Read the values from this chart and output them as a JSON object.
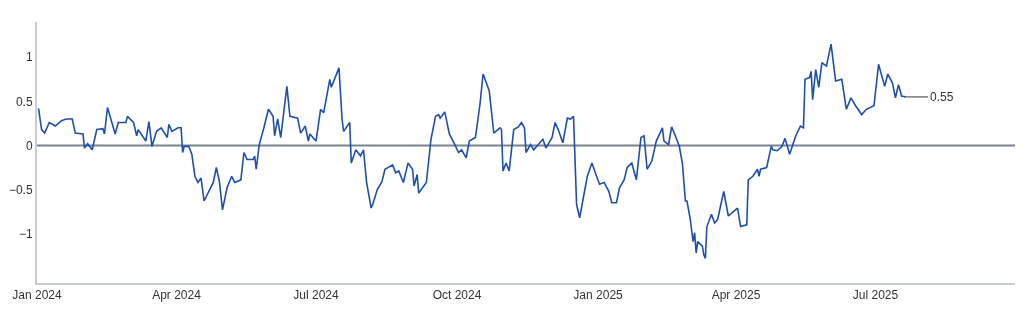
{
  "chart_data": {
    "type": "line",
    "x": [
      "2024-01-02",
      "2024-01-04",
      "2024-01-06",
      "2024-01-09",
      "2024-01-13",
      "2024-01-17",
      "2024-01-20",
      "2024-01-24",
      "2024-01-26",
      "2024-01-31",
      "2024-02-01",
      "2024-02-03",
      "2024-02-06",
      "2024-02-09",
      "2024-02-13",
      "2024-02-14",
      "2024-02-16",
      "2024-02-21",
      "2024-02-23",
      "2024-02-28",
      "2024-02-29",
      "2024-03-04",
      "2024-03-06",
      "2024-03-07",
      "2024-03-12",
      "2024-03-14",
      "2024-03-16",
      "2024-03-19",
      "2024-03-22",
      "2024-03-26",
      "2024-03-27",
      "2024-03-29",
      "2024-04-02",
      "2024-04-04",
      "2024-04-05",
      "2024-04-06",
      "2024-04-09",
      "2024-04-11",
      "2024-04-13",
      "2024-04-15",
      "2024-04-17",
      "2024-04-19",
      "2024-04-25",
      "2024-04-27",
      "2024-04-29",
      "2024-05-01",
      "2024-05-04",
      "2024-05-07",
      "2024-05-09",
      "2024-05-13",
      "2024-05-15",
      "2024-05-17",
      "2024-05-21",
      "2024-05-22",
      "2024-05-23",
      "2024-05-25",
      "2024-05-28",
      "2024-05-31",
      "2024-06-03",
      "2024-06-04",
      "2024-06-06",
      "2024-06-08",
      "2024-06-12",
      "2024-06-14",
      "2024-06-19",
      "2024-06-21",
      "2024-06-24",
      "2024-06-26",
      "2024-06-27",
      "2024-07-01",
      "2024-07-04",
      "2024-07-06",
      "2024-07-10",
      "2024-07-11",
      "2024-07-16",
      "2024-07-18",
      "2024-07-19",
      "2024-07-23",
      "2024-07-24",
      "2024-07-27",
      "2024-07-30",
      "2024-08-01",
      "2024-08-03",
      "2024-08-06",
      "2024-08-07",
      "2024-08-10",
      "2024-08-13",
      "2024-08-15",
      "2024-08-20",
      "2024-08-22",
      "2024-08-24",
      "2024-08-27",
      "2024-08-30",
      "2024-09-02",
      "2024-09-03",
      "2024-09-05",
      "2024-09-06",
      "2024-09-11",
      "2024-09-14",
      "2024-09-17",
      "2024-09-19",
      "2024-09-20",
      "2024-09-23",
      "2024-09-26",
      "2024-09-29",
      "2024-10-02",
      "2024-10-04",
      "2024-10-07",
      "2024-10-09",
      "2024-10-13",
      "2024-10-16",
      "2024-10-18",
      "2024-10-22",
      "2024-10-24",
      "2024-10-25",
      "2024-10-29",
      "2024-10-30",
      "2024-10-31",
      "2024-11-02",
      "2024-11-04",
      "2024-11-07",
      "2024-11-10",
      "2024-11-12",
      "2024-11-14",
      "2024-11-15",
      "2024-11-18",
      "2024-11-20",
      "2024-11-23",
      "2024-11-26",
      "2024-11-28",
      "2024-12-02",
      "2024-12-04",
      "2024-12-06",
      "2024-12-09",
      "2024-12-12",
      "2024-12-14",
      "2024-12-16",
      "2024-12-18",
      "2024-12-20",
      "2024-12-25",
      "2024-12-28",
      "2024-12-31",
      "2025-01-02",
      "2025-01-05",
      "2025-01-08",
      "2025-01-10",
      "2025-01-13",
      "2025-01-15",
      "2025-01-18",
      "2025-01-20",
      "2025-01-23",
      "2025-01-26",
      "2025-01-29",
      "2025-01-31",
      "2025-02-02",
      "2025-02-05",
      "2025-02-08",
      "2025-02-12",
      "2025-02-13",
      "2025-02-16",
      "2025-02-18",
      "2025-02-20",
      "2025-02-23",
      "2025-02-25",
      "2025-02-27",
      "2025-02-28",
      "2025-03-02",
      "2025-03-04",
      "2025-03-05",
      "2025-03-06",
      "2025-03-07",
      "2025-03-10",
      "2025-03-11",
      "2025-03-12",
      "2025-03-13",
      "2025-03-16",
      "2025-03-18",
      "2025-03-20",
      "2025-03-24",
      "2025-03-27",
      "2025-04-02",
      "2025-04-04",
      "2025-04-08",
      "2025-04-09",
      "2025-04-12",
      "2025-04-15",
      "2025-04-16",
      "2025-04-17",
      "2025-04-21",
      "2025-04-24",
      "2025-04-25",
      "2025-04-28",
      "2025-05-01",
      "2025-05-03",
      "2025-05-06",
      "2025-05-10",
      "2025-05-13",
      "2025-05-15",
      "2025-05-16",
      "2025-05-19",
      "2025-05-20",
      "2025-05-21",
      "2025-05-23",
      "2025-05-25",
      "2025-05-27",
      "2025-05-30",
      "2025-06-02",
      "2025-06-05",
      "2025-06-09",
      "2025-06-12",
      "2025-06-15",
      "2025-06-18",
      "2025-06-22",
      "2025-06-25",
      "2025-06-30",
      "2025-07-03",
      "2025-07-07",
      "2025-07-09",
      "2025-07-12",
      "2025-07-14",
      "2025-07-16",
      "2025-07-18",
      "2025-07-21"
    ],
    "series": [
      {
        "color": "#1f4fa8",
        "values": [
          0.42,
          0.18,
          0.14,
          0.26,
          0.22,
          0.28,
          0.3,
          0.3,
          0.14,
          0.13,
          -0.03,
          0.02,
          -0.05,
          0.18,
          0.19,
          0.13,
          0.43,
          0.13,
          0.26,
          0.26,
          0.33,
          0.26,
          0.11,
          0.18,
          0.05,
          0.27,
          -0.01,
          0.16,
          0.2,
          0.09,
          0.24,
          0.16,
          0.2,
          0.2,
          -0.08,
          -0.01,
          -0.01,
          -0.1,
          -0.35,
          -0.42,
          -0.37,
          -0.63,
          -0.42,
          -0.25,
          -0.41,
          -0.73,
          -0.48,
          -0.35,
          -0.42,
          -0.39,
          -0.08,
          -0.16,
          -0.16,
          -0.12,
          -0.27,
          0.01,
          0.2,
          0.41,
          0.33,
          0.11,
          0.3,
          0.09,
          0.67,
          0.33,
          0.31,
          0.14,
          0.22,
          0.05,
          0.13,
          0.05,
          0.41,
          0.37,
          0.75,
          0.66,
          0.88,
          0.3,
          0.16,
          0.26,
          -0.2,
          -0.05,
          -0.12,
          -0.05,
          -0.42,
          -0.71,
          -0.67,
          -0.5,
          -0.41,
          -0.27,
          -0.22,
          -0.31,
          -0.29,
          -0.42,
          -0.2,
          -0.27,
          -0.46,
          -0.33,
          -0.54,
          -0.42,
          0.07,
          0.33,
          0.35,
          0.31,
          0.38,
          0.13,
          0.03,
          -0.08,
          -0.05,
          -0.14,
          0.05,
          0.09,
          0.47,
          0.81,
          0.62,
          0.3,
          0.14,
          0.2,
          0.18,
          -0.29,
          -0.2,
          -0.29,
          0.18,
          0.21,
          0.26,
          0.2,
          -0.08,
          0.01,
          -0.05,
          0.01,
          0.07,
          -0.03,
          0.09,
          0.26,
          0.18,
          0.03,
          0.31,
          0.3,
          0.33,
          -0.67,
          -0.82,
          -0.35,
          -0.2,
          -0.35,
          -0.44,
          -0.42,
          -0.52,
          -0.65,
          -0.65,
          -0.48,
          -0.39,
          -0.25,
          -0.2,
          -0.39,
          0.09,
          0.11,
          -0.27,
          -0.18,
          0.05,
          0.2,
          0.05,
          0.01,
          0.21,
          0.13,
          -0.01,
          -0.2,
          -0.63,
          -0.63,
          -0.82,
          -1.09,
          -0.99,
          -1.22,
          -1.09,
          -1.14,
          -1.24,
          -1.28,
          -0.92,
          -0.78,
          -0.88,
          -0.84,
          -0.52,
          -0.8,
          -0.71,
          -0.92,
          -0.9,
          -0.39,
          -0.35,
          -0.27,
          -0.35,
          -0.27,
          -0.25,
          -0.01,
          -0.05,
          -0.06,
          -0.01,
          0.08,
          -0.1,
          0.11,
          0.22,
          0.2,
          0.75,
          0.77,
          0.84,
          0.52,
          0.86,
          0.66,
          0.94,
          0.9,
          1.15,
          0.73,
          0.75,
          0.41,
          0.54,
          0.45,
          0.35,
          0.41,
          0.45,
          0.92,
          0.67,
          0.81,
          0.71,
          0.54,
          0.69,
          0.56,
          0.55
        ]
      }
    ],
    "annotations": [
      {
        "text": "0.55",
        "x": "2025-07-21",
        "y": 0.55
      }
    ],
    "xlim": [
      "2024-01-01",
      "2025-09-30"
    ],
    "xticks": [
      {
        "value": "2024-01-01",
        "label": "Jan 2024"
      },
      {
        "value": "2024-04-01",
        "label": "Apr 2024"
      },
      {
        "value": "2024-07-01",
        "label": "Jul 2024"
      },
      {
        "value": "2024-10-01",
        "label": "Oct 2024"
      },
      {
        "value": "2025-01-01",
        "label": "Jan 2025"
      },
      {
        "value": "2025-04-01",
        "label": "Apr 2025"
      },
      {
        "value": "2025-07-01",
        "label": "Jul 2025"
      }
    ],
    "ylim": [
      -1.56,
      1.4
    ],
    "yticks": [
      1,
      0.5,
      0,
      {
        "value": -0.5,
        "label": "−0.5"
      },
      {
        "value": -1,
        "label": "−1"
      }
    ],
    "ref_lines": [
      {
        "axis": "y",
        "value": 0,
        "color": "#7a8290"
      }
    ],
    "grid": false,
    "marker": "none",
    "line_style": "solid"
  }
}
